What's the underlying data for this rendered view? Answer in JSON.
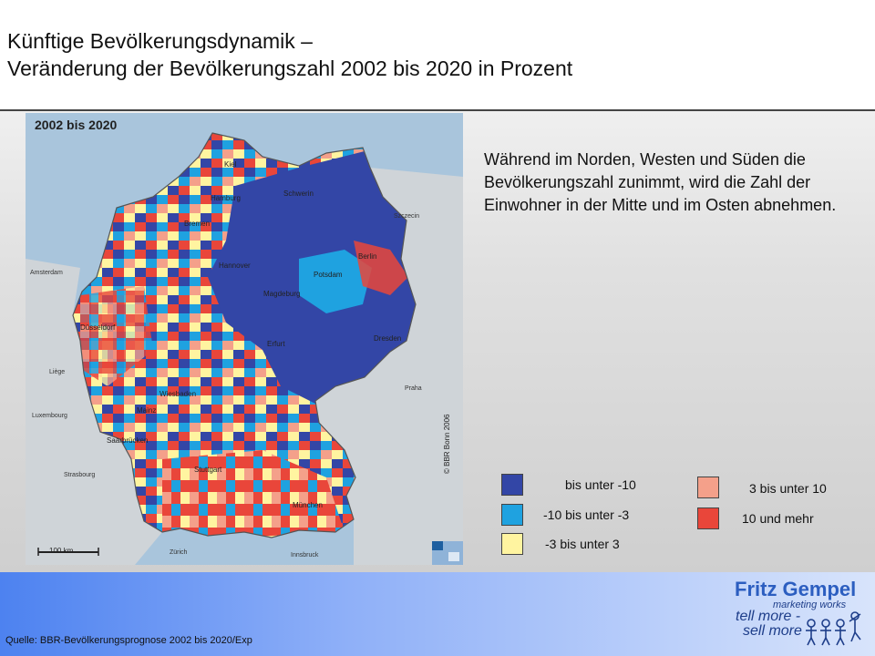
{
  "title": {
    "line1": "Künftige Bevölkerungsdynamik –",
    "line2": "Veränderung der Bevölkerungszahl 2002 bis 2020 in Prozent"
  },
  "map": {
    "caption": "2002 bis 2020",
    "copyright": "© BBR Bonn 2006",
    "scale_label": "100 km",
    "cities": {
      "kiel": "Kiel",
      "hamburg": "Hamburg",
      "schwerin": "Schwerin",
      "szczecin": "Szczecin",
      "bremen": "Bremen",
      "berlin": "Berlin",
      "amsterdam": "Amsterdam",
      "hannover": "Hannover",
      "potsdam": "Potsdam",
      "magdeburg": "Magdeburg",
      "duesseldorf": "Düsseldorf",
      "erfurt": "Erfurt",
      "dresden": "Dresden",
      "liege": "Liège",
      "praha": "Praha",
      "wiesbaden": "Wiesbaden",
      "mainz": "Mainz",
      "luxembourg": "Luxembourg",
      "saarbruecken": "Saarbrücken",
      "strasbourg": "Strasbourg",
      "stuttgart": "Stuttgart",
      "muenchen": "München",
      "zuerich": "Zürich",
      "innsbruck": "Innsbruck"
    }
  },
  "description": "Während im Norden, Westen und Süden die Bevölkerungszahl zunimmt, wird die Zahl der Einwohner in der Mitte und im Osten abnehmen.",
  "legend": [
    {
      "label": "bis unter -10",
      "color": "#3346a6"
    },
    {
      "label": "-10 bis unter  -3",
      "color": "#1fa2e0"
    },
    {
      "label": "-3 bis unter   3",
      "color": "#fff4a0"
    },
    {
      "label": "3 bis unter  10",
      "color": "#f4a08a"
    },
    {
      "label": "10 und mehr",
      "color": "#e9463a"
    }
  ],
  "colors": {
    "sea": "#a9c5dc",
    "neighbour_land": "#cfd4d8",
    "footer_start": "#4d82f0",
    "footer_end": "#d8e4fb"
  },
  "footer": {
    "source": "Quelle:  BBR-Bevölkerungsprognose 2002 bis 2020/Exp",
    "logo_name": "Fritz Gempel",
    "logo_tag": "marketing works",
    "logo_hand1": "tell more -",
    "logo_hand2": "sell more"
  }
}
